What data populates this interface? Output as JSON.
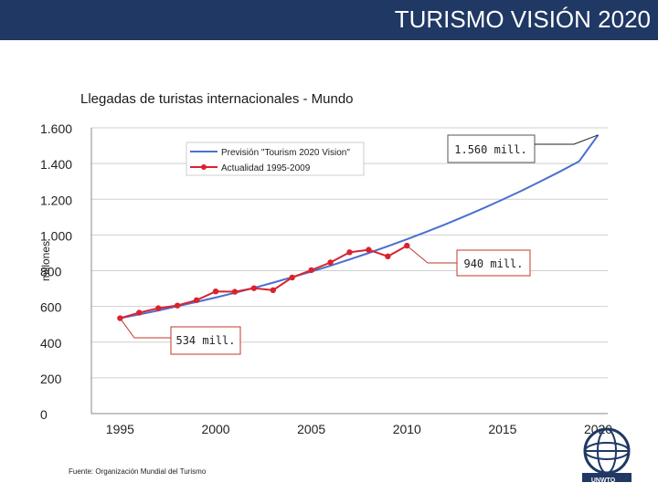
{
  "header": {
    "title": "TURISMO VISIÓN 2020"
  },
  "colors": {
    "header_bg": "#1f3864",
    "forecast": "#4a6fd0",
    "actual": "#d9232d"
  },
  "source": "Fuente: Organización Mundial del Turismo",
  "logo": {
    "text": "UNWTO"
  },
  "chart_data": {
    "type": "line",
    "title": "Llegadas de turistas internacionales - Mundo",
    "ylabel": "millones",
    "xlabel": "",
    "xlim": [
      1993.5,
      2020.5
    ],
    "ylim": [
      0,
      1600
    ],
    "x_ticks": [
      1995,
      2000,
      2005,
      2010,
      2015,
      2020
    ],
    "x_tick_labels": [
      "1995",
      "2000",
      "2005",
      "2010",
      "2015",
      "2020"
    ],
    "y_ticks": [
      0,
      200,
      400,
      600,
      800,
      1000,
      1200,
      1400,
      1600
    ],
    "y_tick_labels": [
      "0",
      "200",
      "400",
      "600",
      "800",
      "1.000",
      "1.200",
      "1.400",
      "1.600"
    ],
    "legend_position": "top-center",
    "series": [
      {
        "name": "Previsión \"Tourism 2020 Vision\"",
        "style": "line",
        "x": [
          1995,
          1996,
          1997,
          1998,
          1999,
          2000,
          2001,
          2002,
          2003,
          2004,
          2005,
          2006,
          2007,
          2008,
          2009,
          2010,
          2011,
          2012,
          2013,
          2014,
          2015,
          2016,
          2017,
          2018,
          2019,
          2020
        ],
        "values": [
          534,
          555,
          577,
          601,
          625,
          650,
          676,
          704,
          733,
          764,
          795,
          828,
          863,
          899,
          937,
          976,
          1017,
          1059,
          1104,
          1150,
          1198,
          1248,
          1301,
          1355,
          1412,
          1560
        ]
      },
      {
        "name": "Actualidad 1995-2009",
        "style": "line-markers",
        "x": [
          1995,
          1996,
          1997,
          1998,
          1999,
          2000,
          2001,
          2002,
          2003,
          2004,
          2005,
          2006,
          2007,
          2008,
          2009,
          2010
        ],
        "values": [
          534,
          565,
          590,
          605,
          635,
          684,
          682,
          702,
          691,
          762,
          803,
          846,
          903,
          917,
          880,
          940
        ]
      }
    ],
    "annotations": [
      {
        "text": "1.560 mill.",
        "x": 2020,
        "y": 1560
      },
      {
        "text": "940 mill.",
        "x": 2010,
        "y": 940
      },
      {
        "text": "534 mill.",
        "x": 1995,
        "y": 534
      }
    ]
  }
}
